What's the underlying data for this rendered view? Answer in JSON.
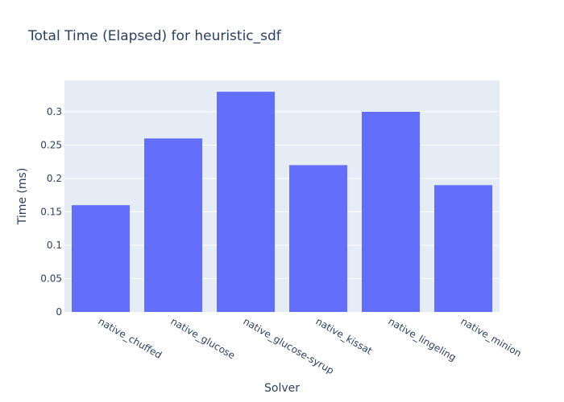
{
  "chart_data": {
    "type": "bar",
    "title": "Total Time (Elapsed) for heuristic_sdf",
    "xlabel": "Solver",
    "ylabel": "Time (ms)",
    "categories": [
      "native_chuffed",
      "native_glucose",
      "native_glucose-syrup",
      "native_kissat",
      "native_lingeling",
      "native_minion"
    ],
    "values": [
      0.16,
      0.26,
      0.33,
      0.22,
      0.3,
      0.19
    ],
    "ylim": [
      0,
      0.347
    ],
    "yticks": [
      0,
      0.05,
      0.1,
      0.15,
      0.2,
      0.25,
      0.3
    ],
    "ytick_labels": [
      "0",
      "0.05",
      "0.1",
      "0.15",
      "0.2",
      "0.25",
      "0.3"
    ],
    "grid": true,
    "colors": {
      "bar": "#636efa",
      "plot_background": "#e5ecf6",
      "grid": "#ffffff",
      "text": "#2a3f5f"
    }
  }
}
